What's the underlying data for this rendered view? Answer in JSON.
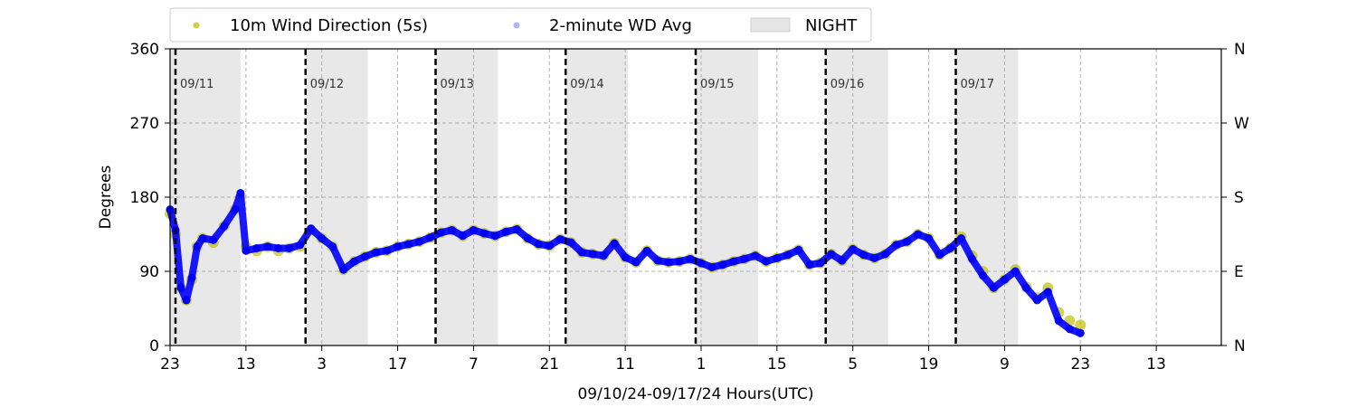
{
  "chart_data": {
    "type": "scatter",
    "xlabel": "09/10/24-09/17/24  Hours(UTC)",
    "ylabel": "Degrees",
    "x_range_hours": [
      0,
      194
    ],
    "ylim": [
      0,
      360
    ],
    "x_ticks": [
      {
        "hour": 0,
        "label": "23"
      },
      {
        "hour": 14,
        "label": "13"
      },
      {
        "hour": 28,
        "label": "3"
      },
      {
        "hour": 42,
        "label": "17"
      },
      {
        "hour": 56,
        "label": "7"
      },
      {
        "hour": 70,
        "label": "21"
      },
      {
        "hour": 84,
        "label": "11"
      },
      {
        "hour": 98,
        "label": "1"
      },
      {
        "hour": 112,
        "label": "15"
      },
      {
        "hour": 126,
        "label": "5"
      },
      {
        "hour": 140,
        "label": "19"
      },
      {
        "hour": 154,
        "label": "9"
      },
      {
        "hour": 168,
        "label": "23"
      },
      {
        "hour": 182,
        "label": "13"
      }
    ],
    "y_ticks": [
      "0",
      "90",
      "180",
      "270",
      "360"
    ],
    "y_ticks_right": [
      "N",
      "E",
      "S",
      "W",
      "N"
    ],
    "day_boundaries": [
      {
        "hour": 1,
        "label": "09/11"
      },
      {
        "hour": 25,
        "label": "09/12"
      },
      {
        "hour": 49,
        "label": "09/13"
      },
      {
        "hour": 73,
        "label": "09/14"
      },
      {
        "hour": 97,
        "label": "09/15"
      },
      {
        "hour": 121,
        "label": "09/16"
      },
      {
        "hour": 145,
        "label": "09/17"
      }
    ],
    "night_periods": [
      [
        0,
        13
      ],
      [
        25,
        36.5
      ],
      [
        49,
        60.5
      ],
      [
        73,
        84.5
      ],
      [
        97,
        108.5
      ],
      [
        121,
        132.5
      ],
      [
        145,
        156.5
      ]
    ],
    "legend": {
      "placement": "top",
      "entries": [
        "10m Wind Direction (5s)",
        "2-minute WD Avg",
        "NIGHT"
      ]
    },
    "series": [
      {
        "name": "10m Wind Direction (5s)",
        "color": "#bfbf00",
        "x": [
          0,
          1,
          2,
          3,
          4,
          5,
          6,
          8,
          10,
          12,
          13,
          14,
          16,
          18,
          20,
          22,
          24,
          26,
          28,
          30,
          32,
          34,
          36,
          38,
          40,
          42,
          44,
          46,
          48,
          50,
          52,
          54,
          56,
          58,
          60,
          62,
          64,
          66,
          68,
          70,
          72,
          74,
          76,
          78,
          80,
          82,
          84,
          86,
          88,
          90,
          92,
          94,
          96,
          98,
          100,
          102,
          104,
          106,
          108,
          110,
          112,
          114,
          116,
          118,
          120,
          122,
          124,
          126,
          128,
          130,
          132,
          134,
          136,
          138,
          140,
          142,
          144,
          146,
          148,
          150,
          152,
          154,
          156,
          158,
          160,
          162,
          164,
          166,
          168
        ],
        "y": [
          160,
          135,
          70,
          55,
          80,
          120,
          130,
          125,
          145,
          165,
          180,
          120,
          115,
          120,
          115,
          118,
          120,
          140,
          130,
          120,
          92,
          102,
          108,
          113,
          115,
          120,
          123,
          126,
          131,
          137,
          140,
          133,
          140,
          136,
          133,
          138,
          141,
          130,
          123,
          121,
          129,
          125,
          113,
          111,
          109,
          124,
          107,
          101,
          115,
          103,
          101,
          102,
          105,
          100,
          95,
          98,
          102,
          105,
          109,
          102,
          106,
          110,
          116,
          98,
          100,
          111,
          103,
          117,
          110,
          106,
          111,
          122,
          126,
          135,
          130,
          110,
          118,
          132,
          109,
          90,
          70,
          80,
          92,
          71,
          58,
          70,
          40,
          30,
          25
        ]
      },
      {
        "name": "2-minute WD Avg",
        "color": "#0000ff",
        "x": [
          0,
          1,
          2,
          3,
          4,
          5,
          6,
          8,
          10,
          12,
          13,
          14,
          16,
          18,
          20,
          22,
          24,
          26,
          28,
          30,
          32,
          34,
          36,
          38,
          40,
          42,
          44,
          46,
          48,
          50,
          52,
          54,
          56,
          58,
          60,
          62,
          64,
          66,
          68,
          70,
          72,
          74,
          76,
          78,
          80,
          82,
          84,
          86,
          88,
          90,
          92,
          94,
          96,
          98,
          100,
          102,
          104,
          106,
          108,
          110,
          112,
          114,
          116,
          118,
          120,
          122,
          124,
          126,
          128,
          130,
          132,
          134,
          136,
          138,
          140,
          142,
          144,
          146,
          148,
          150,
          152,
          154,
          156,
          158,
          160,
          162,
          164,
          166,
          168
        ],
        "y": [
          165,
          140,
          70,
          55,
          82,
          120,
          130,
          128,
          145,
          165,
          185,
          115,
          118,
          120,
          118,
          118,
          122,
          142,
          130,
          120,
          92,
          102,
          108,
          113,
          115,
          120,
          123,
          126,
          131,
          137,
          140,
          133,
          140,
          136,
          133,
          138,
          141,
          130,
          123,
          121,
          129,
          125,
          113,
          111,
          109,
          124,
          107,
          101,
          115,
          103,
          101,
          102,
          105,
          100,
          95,
          98,
          102,
          105,
          109,
          102,
          106,
          110,
          116,
          98,
          100,
          111,
          103,
          117,
          110,
          106,
          111,
          122,
          126,
          135,
          130,
          110,
          118,
          130,
          105,
          85,
          70,
          80,
          90,
          70,
          55,
          65,
          30,
          20,
          15
        ]
      }
    ]
  }
}
